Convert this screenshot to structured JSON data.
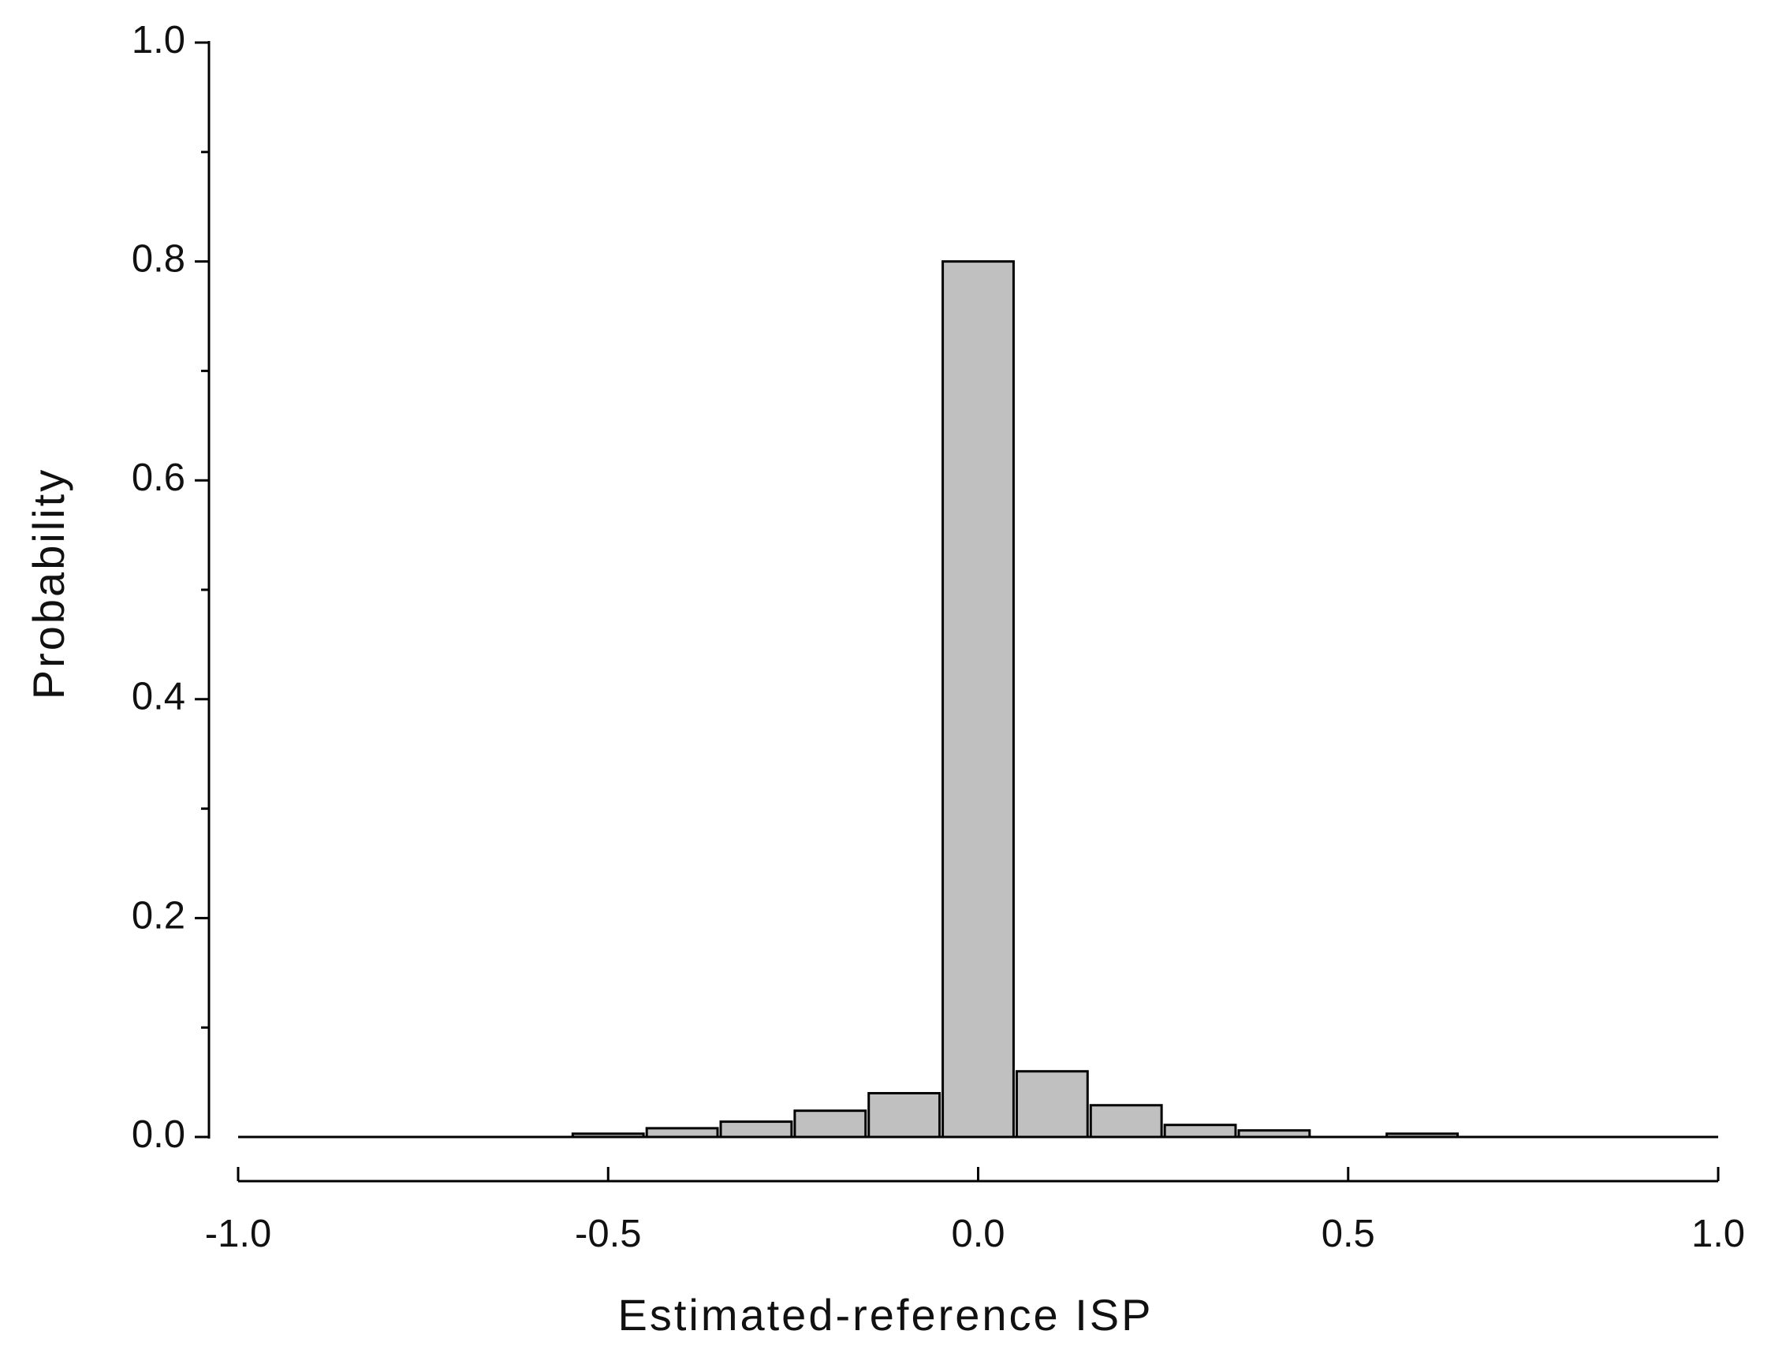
{
  "chart_data": {
    "type": "histogram",
    "xlabel": "Estimated-reference ISP",
    "ylabel": "Probability",
    "bins": [
      -0.55,
      -0.45,
      -0.35,
      -0.25,
      -0.15,
      -0.05,
      0.05,
      0.15,
      0.25,
      0.35,
      0.45,
      0.55,
      0.65
    ],
    "values": [
      0.003,
      0.008,
      0.014,
      0.024,
      0.04,
      0.8,
      0.06,
      0.029,
      0.011,
      0.006,
      0,
      0.003
    ],
    "color": "#c0c0c0",
    "xlim": [
      -1,
      1
    ],
    "xticks": [
      {
        "value": -1,
        "label": "-1.0"
      },
      -0.5,
      {
        "value": 0,
        "label": "0.0"
      },
      0.5,
      {
        "value": 1,
        "label": "1.0"
      }
    ],
    "ylim": [
      0,
      1
    ],
    "yticks": [
      {
        "value": 0,
        "label": "0.0"
      },
      0.2,
      0.4,
      0.6,
      0.8,
      {
        "value": 1,
        "label": "1.0"
      }
    ],
    "yminorticks": [
      0.1,
      0.3,
      0.5,
      0.7,
      0.9
    ]
  }
}
